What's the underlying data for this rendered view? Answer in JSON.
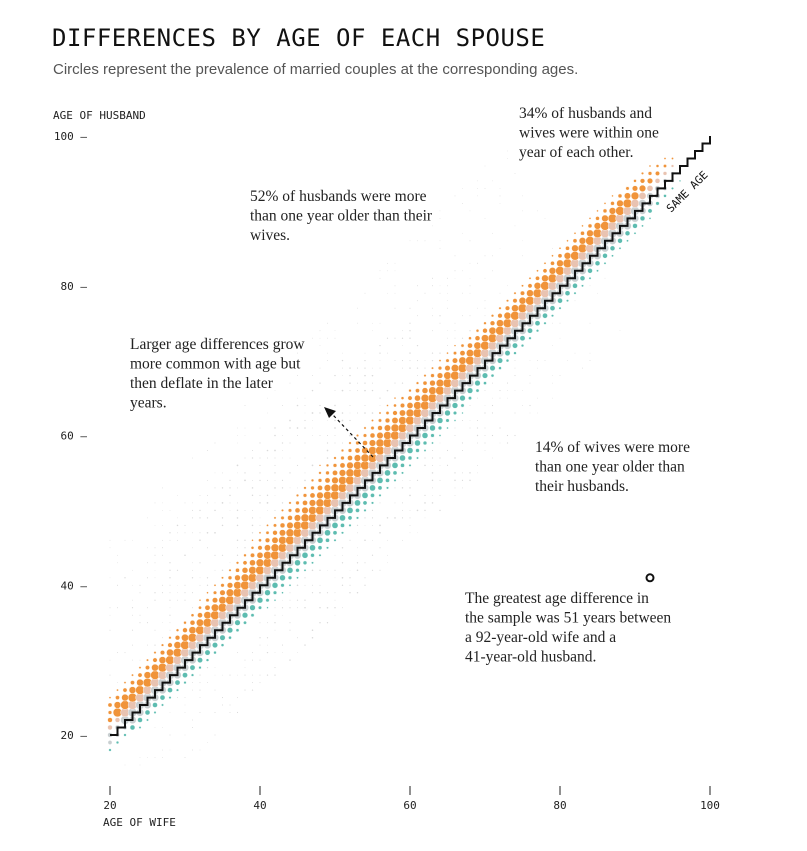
{
  "chart_data": {
    "type": "scatter",
    "title": "DIFFERENCES BY AGE OF EACH SPOUSE",
    "subtitle": "Circles represent the prevalence of married couples at the corresponding ages.",
    "xlabel": "AGE OF WIFE",
    "ylabel": "AGE OF HUSBAND",
    "xlim": [
      20,
      100
    ],
    "ylim": [
      20,
      100
    ],
    "x_ticks": [
      20,
      40,
      60,
      80,
      100
    ],
    "y_ticks": [
      20,
      40,
      60,
      80,
      100
    ],
    "y_tick_labels": [
      "20 —",
      "40 —",
      "60 —",
      "80 —",
      "100 —"
    ],
    "diagonal_label": "SAME AGE",
    "colors": {
      "husband_older": "#f0943a",
      "same_age": "#e9c3b1",
      "same_age_gray": "#c9cfd1",
      "wife_older": "#5dbcb0",
      "faint": "#d9d9d9",
      "staircase": "#111111"
    },
    "series": [
      {
        "name": "Husband more than one year older",
        "share_percent": 52,
        "color": "#f0943a"
      },
      {
        "name": "Within one year of each other",
        "share_percent": 34,
        "color": "#e9c3b1"
      },
      {
        "name": "Wife more than one year older",
        "share_percent": 14,
        "color": "#5dbcb0"
      }
    ],
    "max_difference_point": {
      "wife_age": 92,
      "husband_age": 41,
      "difference_years": 51
    },
    "annotations": {
      "same_age": [
        "34% of husbands and",
        "wives were within one",
        "year of each other."
      ],
      "husband_older": [
        "52% of husbands were more",
        "than one year older than their",
        "wives."
      ],
      "trend": [
        "Larger age differences grow",
        "more common with age but",
        "then deflate in the later",
        "years."
      ],
      "wife_older": [
        "14% of wives were more",
        "than one year older than",
        "their husbands."
      ],
      "max_difference": [
        "The greatest age difference in",
        "the sample was 51 years between",
        "a 92-year-old wife and a",
        "41-year-old husband."
      ]
    }
  }
}
